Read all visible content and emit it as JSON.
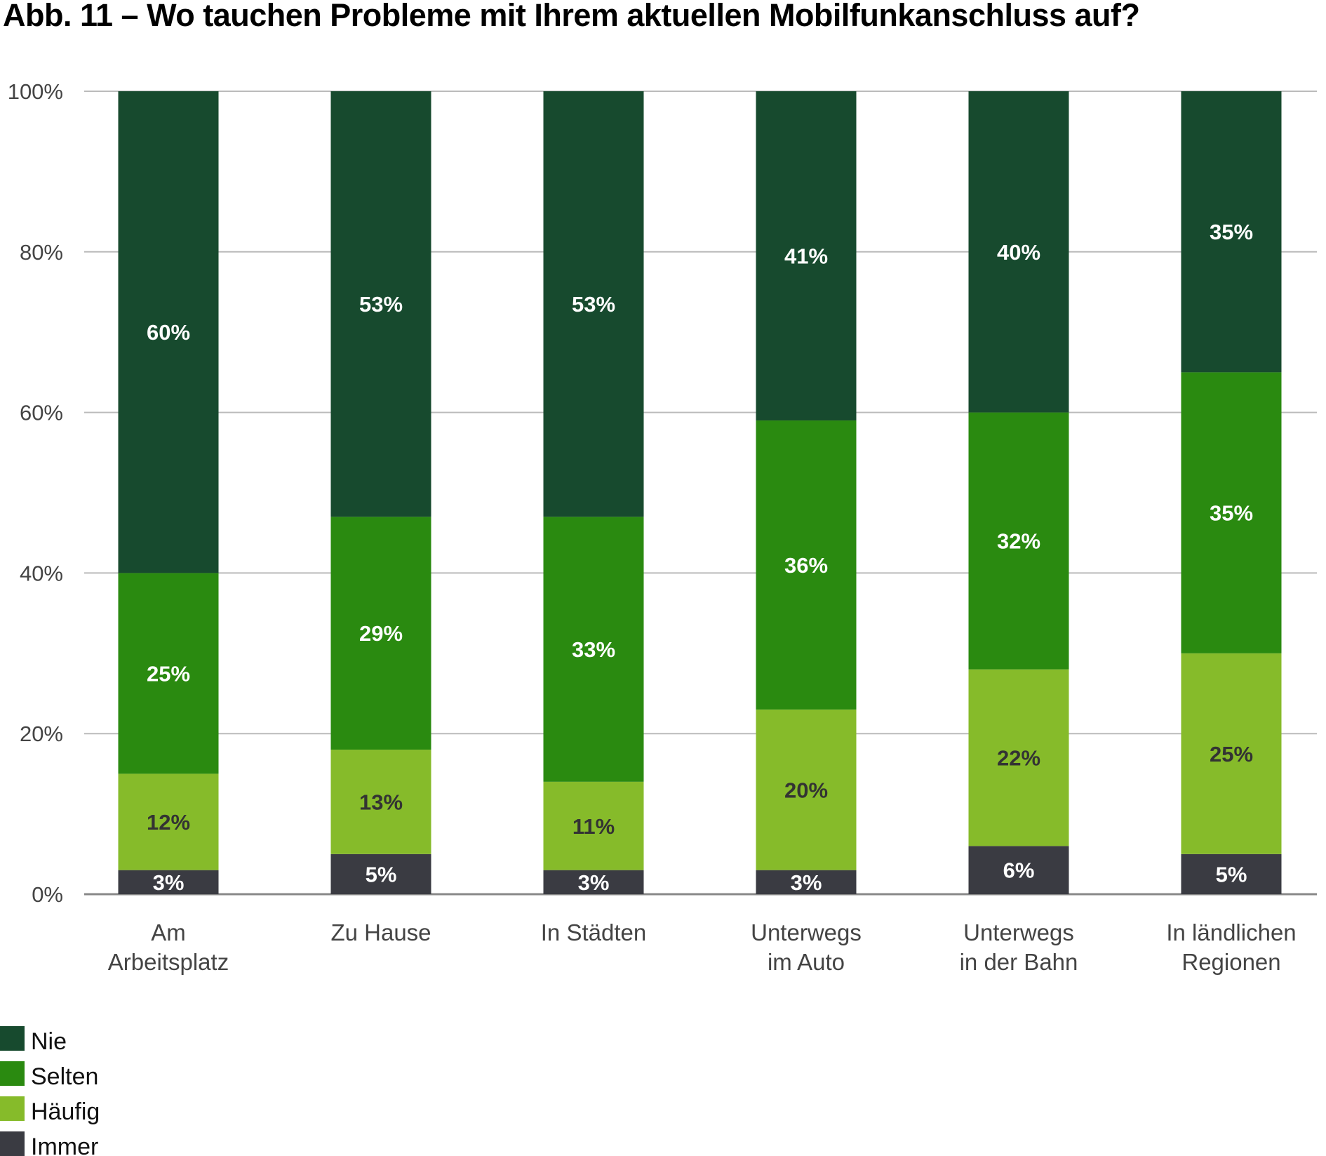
{
  "chart_data": {
    "type": "bar",
    "stacked": true,
    "title": "Abb. 11 – Wo tauchen Probleme mit Ihrem aktuellen Mobilfunkanschluss auf?",
    "xlabel": "",
    "ylabel": "",
    "ylim": [
      0,
      100
    ],
    "yticks": [
      "0%",
      "20%",
      "40%",
      "60%",
      "80%",
      "100%"
    ],
    "grid": true,
    "legend_position": "bottom-left",
    "categories": [
      [
        "Am",
        "Arbeitsplatz"
      ],
      [
        "Zu Hause"
      ],
      [
        "In Städten"
      ],
      [
        "Unterwegs",
        "im Auto"
      ],
      [
        "Unterwegs",
        "in der Bahn"
      ],
      [
        "In ländlichen",
        "Regionen"
      ]
    ],
    "series": [
      {
        "name": "Immer",
        "color": "#3a3b42",
        "label_color": "#ffffff",
        "values": [
          3,
          5,
          3,
          3,
          6,
          5
        ]
      },
      {
        "name": "Häufig",
        "color": "#86bb2a",
        "label_color": "#333333",
        "values": [
          12,
          13,
          11,
          20,
          22,
          25
        ]
      },
      {
        "name": "Selten",
        "color": "#2a8a10",
        "label_color": "#ffffff",
        "values": [
          25,
          29,
          33,
          36,
          32,
          35
        ]
      },
      {
        "name": "Nie",
        "color": "#174a2e",
        "label_color": "#ffffff",
        "values": [
          60,
          53,
          53,
          41,
          40,
          35
        ]
      }
    ],
    "legend_order": [
      "Nie",
      "Selten",
      "Häufig",
      "Immer"
    ]
  }
}
